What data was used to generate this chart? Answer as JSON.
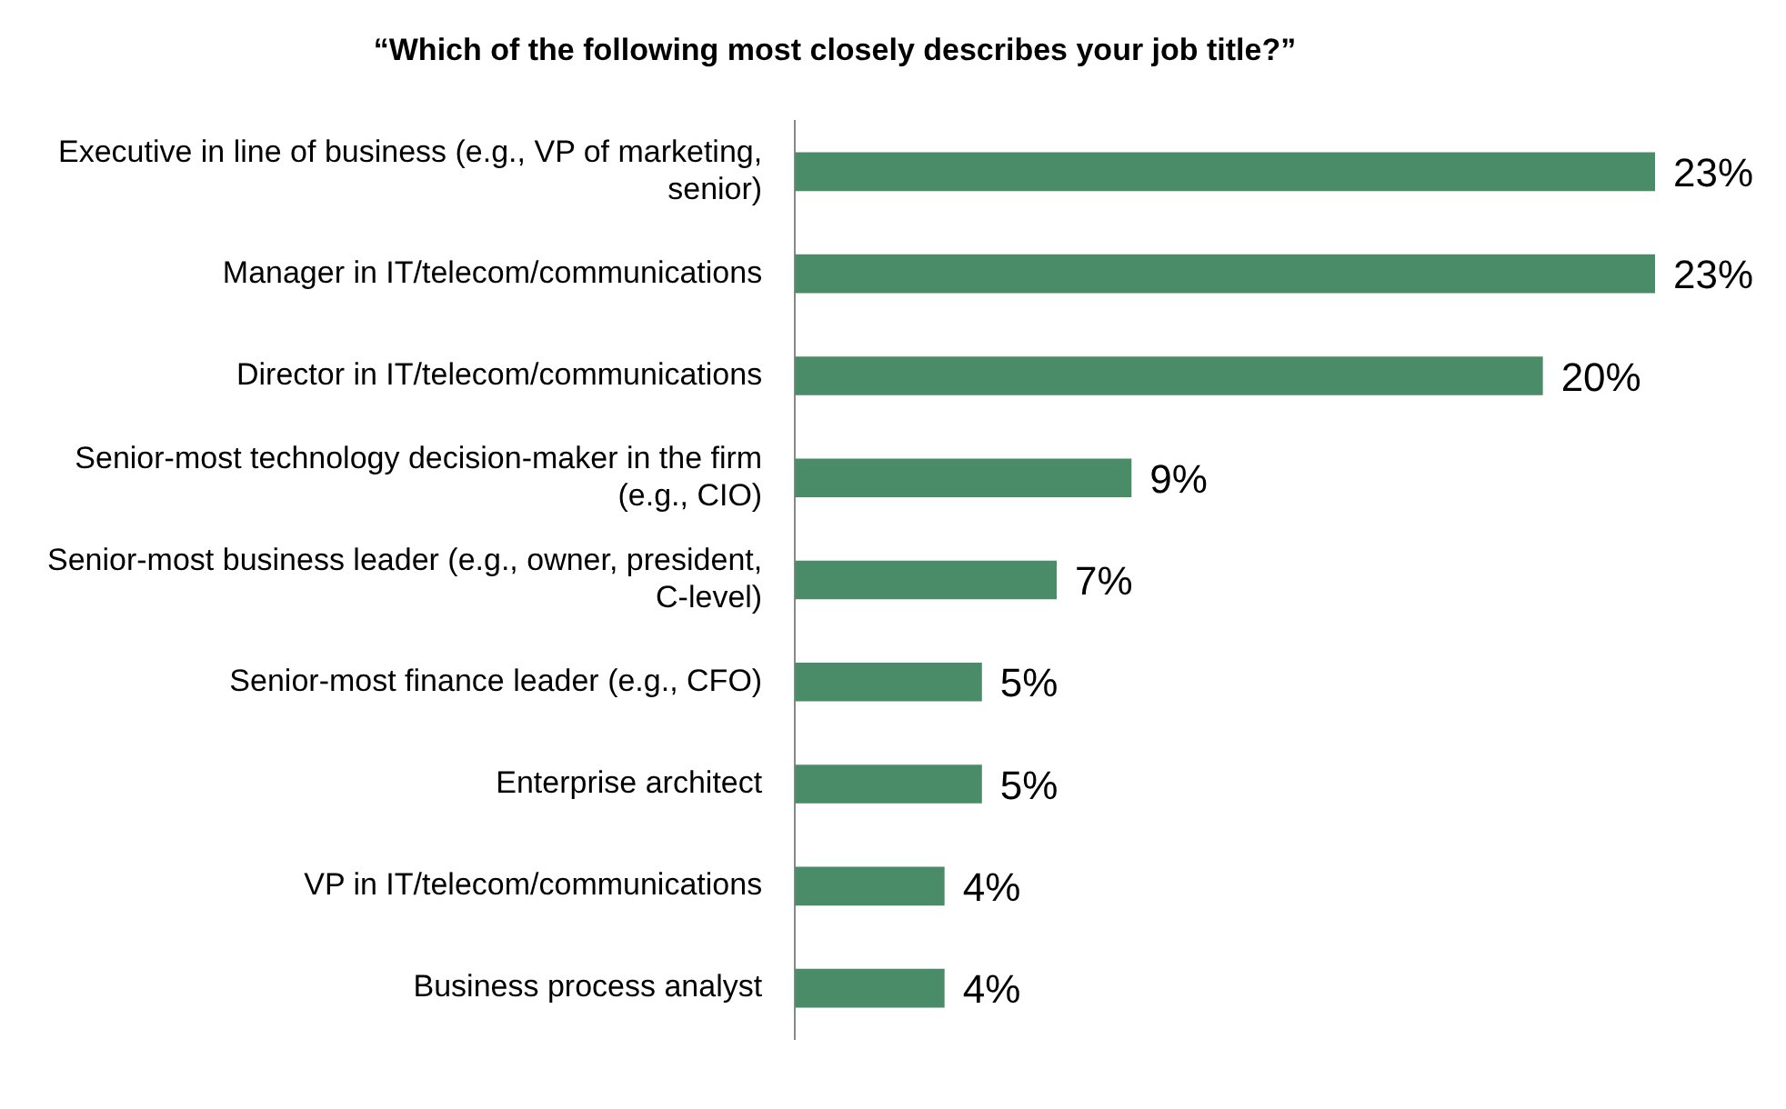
{
  "chart_data": {
    "type": "bar",
    "orientation": "horizontal",
    "title": "“Which of the following most closely describes your job title?”",
    "categories": [
      "Executive in line of business (e.g., VP of marketing, senior)",
      "Manager in IT/telecom/communications",
      "Director in IT/telecom/communications",
      "Senior-most technology decision-maker in the firm (e.g., CIO)",
      "Senior-most business leader (e.g., owner, president, C-level)",
      "Senior-most finance leader (e.g., CFO)",
      "Enterprise architect",
      "VP in IT/telecom/communications",
      "Business process analyst"
    ],
    "values": [
      23,
      23,
      20,
      9,
      7,
      5,
      5,
      4,
      4
    ],
    "value_labels": [
      "23%",
      "23%",
      "20%",
      "9%",
      "7%",
      "5%",
      "5%",
      "4%",
      "4%"
    ],
    "color": "#4a8c67",
    "xlim": [
      0,
      23
    ],
    "tick_labels": "y",
    "grid": false,
    "legend": false
  }
}
